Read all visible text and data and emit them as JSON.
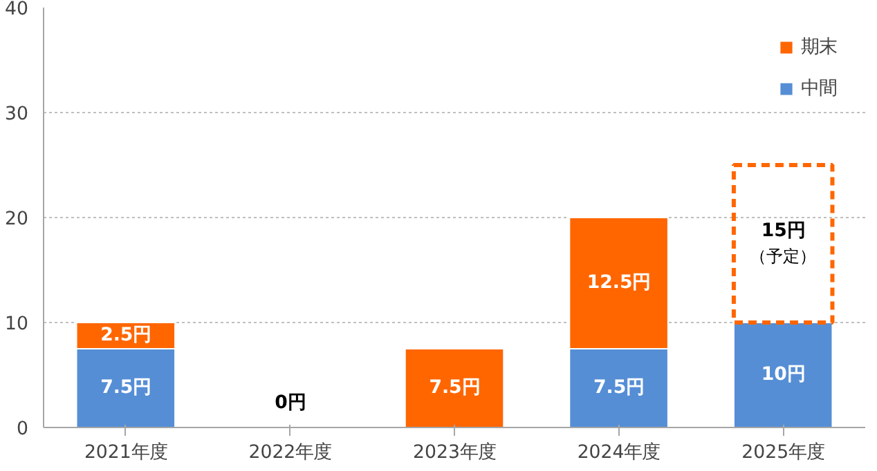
{
  "chart_data": {
    "type": "bar",
    "stacked": true,
    "categories": [
      "2021年度",
      "2022年度",
      "2023年度",
      "2024年度",
      "2025年度"
    ],
    "series": [
      {
        "name": "中間",
        "color": "#558ed5",
        "values": [
          7.5,
          0,
          0,
          7.5,
          10
        ],
        "value_labels": [
          "7.5円",
          null,
          null,
          "7.5円",
          "10円"
        ]
      },
      {
        "name": "期末",
        "color": "#ff6600",
        "values": [
          2.5,
          0,
          7.5,
          12.5,
          null
        ],
        "value_labels": [
          "2.5円",
          null,
          "7.5円",
          "12.5円",
          null
        ]
      },
      {
        "color": "#ff6600",
        "line_style": "dashed",
        "values": [
          null,
          null,
          null,
          null,
          15
        ],
        "value_labels": [
          null,
          null,
          null,
          null,
          "15円（予定）"
        ]
      }
    ],
    "annotations": [
      {
        "text": "0円",
        "x": "2022年度",
        "y": 0
      }
    ],
    "ylim": [
      0,
      40
    ],
    "yticks": [
      0,
      10,
      20,
      30,
      40
    ],
    "grid": "y",
    "legend": "top right"
  }
}
